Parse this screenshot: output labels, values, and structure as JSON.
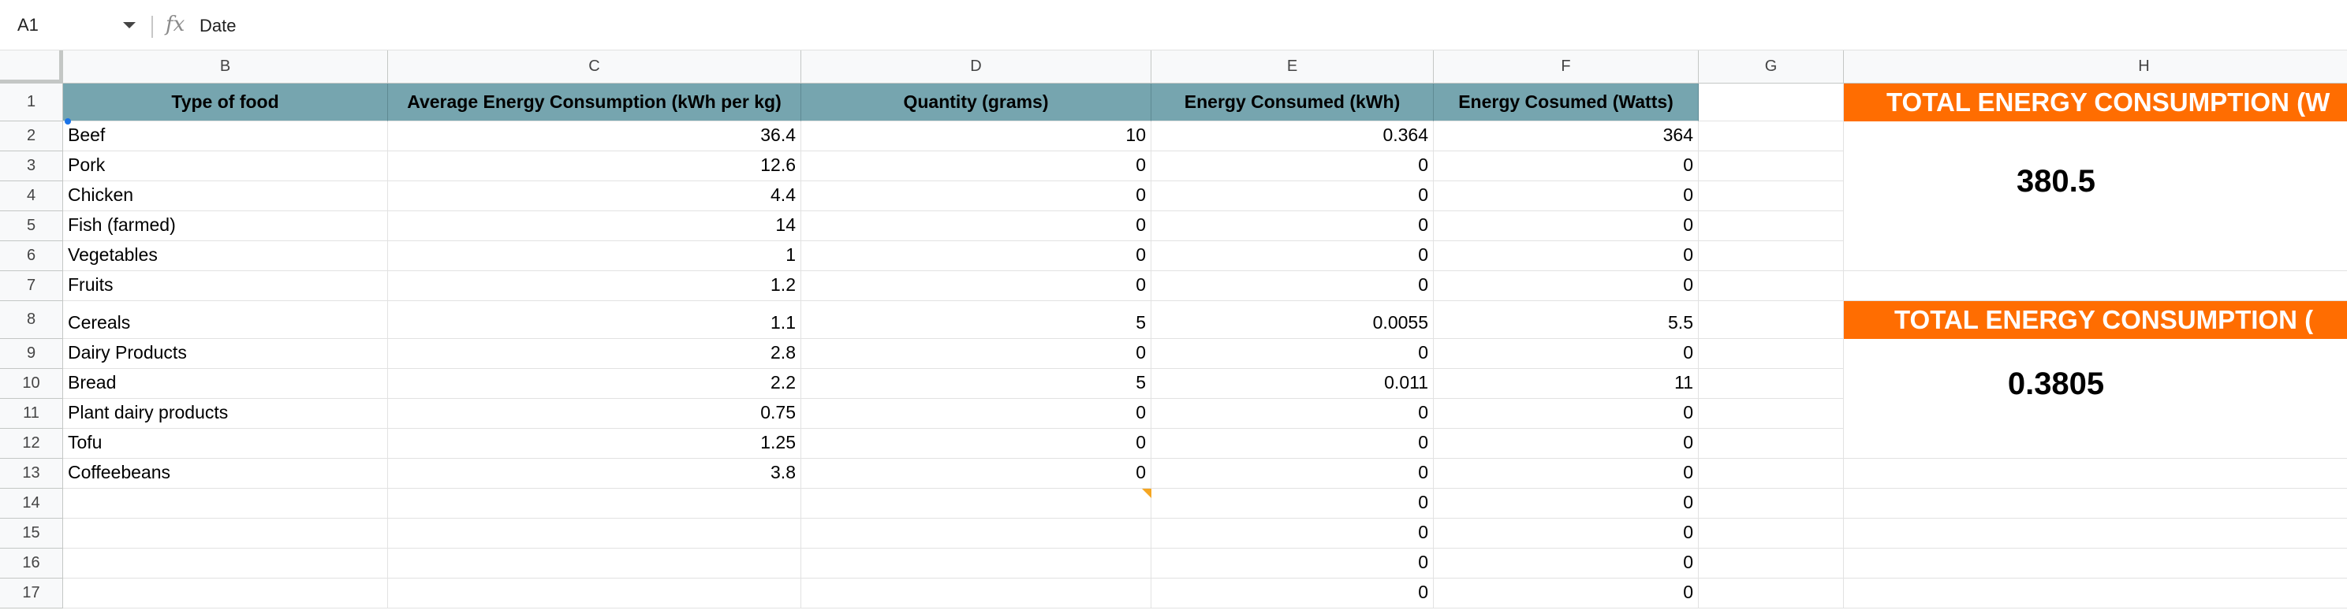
{
  "formula_bar": {
    "cell_ref": "A1",
    "fx_label": "fx",
    "content": "Date"
  },
  "columns": [
    "B",
    "C",
    "D",
    "E",
    "F",
    "G",
    "H"
  ],
  "rows": [
    "1",
    "2",
    "3",
    "4",
    "5",
    "6",
    "7",
    "8",
    "9",
    "10",
    "11",
    "12",
    "13",
    "14",
    "15",
    "16",
    "17"
  ],
  "table": {
    "headers": [
      "Type of food",
      "Average Energy Consumption (kWh per kg)",
      "Quantity (grams)",
      "Energy Consumed (kWh)",
      "Energy Cosumed (Watts)"
    ],
    "data": [
      [
        "Beef",
        "36.4",
        "10",
        "0.364",
        "364"
      ],
      [
        "Pork",
        "12.6",
        "0",
        "0",
        "0"
      ],
      [
        "Chicken",
        "4.4",
        "0",
        "0",
        "0"
      ],
      [
        "Fish (farmed)",
        "14",
        "0",
        "0",
        "0"
      ],
      [
        "Vegetables",
        "1",
        "0",
        "0",
        "0"
      ],
      [
        "Fruits",
        "1.2",
        "0",
        "0",
        "0"
      ],
      [
        "Cereals",
        "1.1",
        "5",
        "0.0055",
        "5.5"
      ],
      [
        "Dairy Products",
        "2.8",
        "0",
        "0",
        "0"
      ],
      [
        "Bread",
        "2.2",
        "5",
        "0.011",
        "11"
      ],
      [
        "Plant dairy products",
        "0.75",
        "0",
        "0",
        "0"
      ],
      [
        "Tofu",
        "1.25",
        "0",
        "0",
        "0"
      ],
      [
        "Coffeebeans",
        "3.8",
        "0",
        "0",
        "0"
      ],
      [
        "",
        "",
        "",
        "0",
        "0"
      ],
      [
        "",
        "",
        "",
        "0",
        "0"
      ],
      [
        "",
        "",
        "",
        "0",
        "0"
      ],
      [
        "",
        "",
        "",
        "0",
        "0"
      ]
    ]
  },
  "summary": {
    "watts_title": "TOTAL ENERGY CONSUMPTION (W",
    "watts_value": "380.5",
    "kwh_title": "TOTAL ENERGY CONSUMPTION (",
    "kwh_value": "0.3805"
  },
  "colors": {
    "header_fill": "#76a5af",
    "summary_fill": "#ff6d01",
    "selection": "#1a73e8"
  }
}
